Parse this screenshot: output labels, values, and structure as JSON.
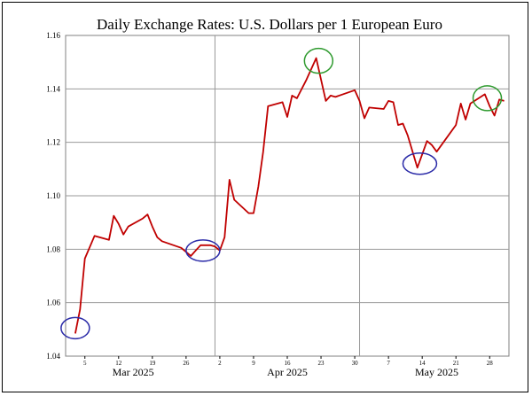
{
  "chart_data": {
    "type": "line",
    "title": "Daily Exchange Rates: U.S. Dollars per 1 European Euro",
    "xlabel": "",
    "ylabel": "",
    "ylim": [
      1.04,
      1.16
    ],
    "y_ticks": [
      {
        "value": 1.04,
        "label": "1.04"
      },
      {
        "value": 1.06,
        "label": "1.06"
      },
      {
        "value": 1.08,
        "label": "1.08"
      },
      {
        "value": 1.1,
        "label": "1.10"
      },
      {
        "value": 1.12,
        "label": "1.12"
      },
      {
        "value": 1.14,
        "label": "1.14"
      },
      {
        "value": 1.16,
        "label": "1.16"
      }
    ],
    "x_range_days": [
      0,
      92
    ],
    "x_ticks": [
      {
        "day": 4,
        "label": "5"
      },
      {
        "day": 11,
        "label": "12"
      },
      {
        "day": 18,
        "label": "19"
      },
      {
        "day": 25,
        "label": "26"
      },
      {
        "day": 32,
        "label": "2"
      },
      {
        "day": 39,
        "label": "9"
      },
      {
        "day": 46,
        "label": "16"
      },
      {
        "day": 53,
        "label": "23"
      },
      {
        "day": 60,
        "label": "30"
      },
      {
        "day": 67,
        "label": "7"
      },
      {
        "day": 74,
        "label": "14"
      },
      {
        "day": 81,
        "label": "21"
      },
      {
        "day": 88,
        "label": "28"
      }
    ],
    "month_dividers": [
      31,
      61
    ],
    "month_labels": [
      {
        "day": 14,
        "label": "Mar 2025"
      },
      {
        "day": 46,
        "label": "Apr 2025"
      },
      {
        "day": 77,
        "label": "May 2025"
      }
    ],
    "series": [
      {
        "name": "USD per EUR",
        "color": "#c00000",
        "points": [
          [
            2,
            1.0485
          ],
          [
            3,
            1.0575
          ],
          [
            4,
            1.0765
          ],
          [
            6,
            1.085
          ],
          [
            9,
            1.0835
          ],
          [
            10,
            1.0925
          ],
          [
            11,
            1.0895
          ],
          [
            12,
            1.0855
          ],
          [
            13,
            1.0885
          ],
          [
            16,
            1.0915
          ],
          [
            17,
            1.093
          ],
          [
            18,
            1.0885
          ],
          [
            19,
            1.0845
          ],
          [
            20,
            1.083
          ],
          [
            24,
            1.0805
          ],
          [
            26,
            1.0775
          ],
          [
            27,
            1.0795
          ],
          [
            28,
            1.0815
          ],
          [
            30,
            1.0815
          ],
          [
            31,
            1.081
          ],
          [
            32,
            1.0795
          ],
          [
            33,
            1.0845
          ],
          [
            34,
            1.106
          ],
          [
            35,
            1.0985
          ],
          [
            38,
            1.0935
          ],
          [
            39,
            1.0935
          ],
          [
            40,
            1.1035
          ],
          [
            41,
            1.1165
          ],
          [
            42,
            1.1335
          ],
          [
            45,
            1.135
          ],
          [
            46,
            1.1295
          ],
          [
            47,
            1.1375
          ],
          [
            48,
            1.1365
          ],
          [
            50,
            1.1435
          ],
          [
            52,
            1.1515
          ],
          [
            54,
            1.1355
          ],
          [
            55,
            1.1375
          ],
          [
            56,
            1.137
          ],
          [
            60,
            1.1395
          ],
          [
            61,
            1.1355
          ],
          [
            62,
            1.129
          ],
          [
            63,
            1.133
          ],
          [
            66,
            1.1325
          ],
          [
            67,
            1.1355
          ],
          [
            68,
            1.135
          ],
          [
            69,
            1.1265
          ],
          [
            70,
            1.127
          ],
          [
            71,
            1.1225
          ],
          [
            73,
            1.1105
          ],
          [
            75,
            1.1205
          ],
          [
            76,
            1.119
          ],
          [
            77,
            1.1165
          ],
          [
            81,
            1.1265
          ],
          [
            82,
            1.1345
          ],
          [
            83,
            1.1285
          ],
          [
            84,
            1.1345
          ],
          [
            87,
            1.138
          ],
          [
            88,
            1.1335
          ],
          [
            89,
            1.13
          ],
          [
            90,
            1.136
          ],
          [
            91,
            1.1355
          ]
        ]
      }
    ],
    "annotations": [
      {
        "type": "circle",
        "color": "#2b2ba8",
        "day": 2,
        "value": 1.0505,
        "meaning": "low"
      },
      {
        "type": "circle",
        "color": "#2b2ba8",
        "day": 28.5,
        "value": 1.0795,
        "meaning": "low"
      },
      {
        "type": "circle",
        "color": "#2b2ba8",
        "day": 73.5,
        "value": 1.112,
        "meaning": "low"
      },
      {
        "type": "circle",
        "color": "#2e9a2e",
        "day": 52.5,
        "value": 1.1505,
        "meaning": "high"
      },
      {
        "type": "circle",
        "color": "#2e9a2e",
        "day": 87.5,
        "value": 1.1365,
        "meaning": "high"
      }
    ],
    "grid": true
  }
}
